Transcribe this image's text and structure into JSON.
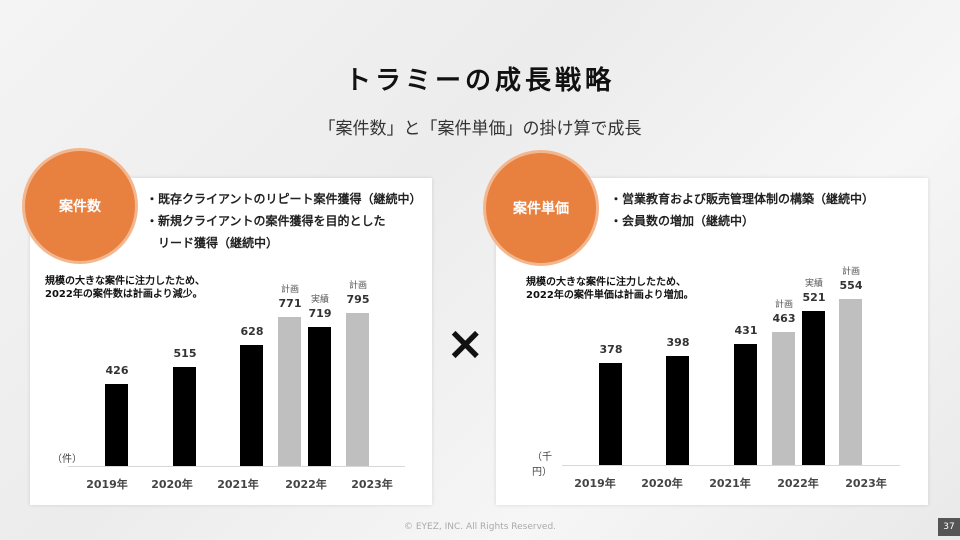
{
  "title": "トラミーの成長戦略",
  "subtitle": "「案件数」と「案件単価」の掛け算で成長",
  "operator": "×",
  "left": {
    "badge": "案件数",
    "bullets": [
      "・既存クライアントのリピート案件獲得（継続中）",
      "・新規クライアントの案件獲得を目的とした",
      "　リード獲得（継続中）"
    ],
    "note": [
      "規模の大きな案件に注力したため、",
      "2022年の案件数は計画より減少。"
    ]
  },
  "right": {
    "badge": "案件単価",
    "bullets": [
      "・営業教育および販売管理体制の構築（継続中）",
      "・会員数の増加（継続中）"
    ],
    "note": [
      "規模の大きな案件に注力したため、",
      "2022年の案件単価は計画より増加。"
    ]
  },
  "chart_data": [
    {
      "type": "bar",
      "title": "案件数",
      "ylabel": "（件）",
      "ylim": [
        0,
        820
      ],
      "categories": [
        "2019年",
        "2020年",
        "2021年",
        "2022年",
        "2023年"
      ],
      "bars": [
        {
          "category": "2019年",
          "value": 426,
          "kind": "actual",
          "label": ""
        },
        {
          "category": "2020年",
          "value": 515,
          "kind": "actual",
          "label": ""
        },
        {
          "category": "2021年",
          "value": 628,
          "kind": "actual",
          "label": ""
        },
        {
          "category": "2022年",
          "value": 771,
          "kind": "plan",
          "label": "計画"
        },
        {
          "category": "2022年",
          "value": 719,
          "kind": "actual",
          "label": "実績"
        },
        {
          "category": "2023年",
          "value": 795,
          "kind": "plan",
          "label": "計画"
        }
      ]
    },
    {
      "type": "bar",
      "title": "案件単価",
      "ylabel": "（千円）",
      "ylim": [
        98,
        580
      ],
      "categories": [
        "2019年",
        "2020年",
        "2021年",
        "2022年",
        "2023年"
      ],
      "bars": [
        {
          "category": "2019年",
          "value": 378,
          "kind": "actual",
          "label": ""
        },
        {
          "category": "2020年",
          "value": 398,
          "kind": "actual",
          "label": ""
        },
        {
          "category": "2021年",
          "value": 431,
          "kind": "actual",
          "label": ""
        },
        {
          "category": "2022年",
          "value": 463,
          "kind": "plan",
          "label": "計画"
        },
        {
          "category": "2022年",
          "value": 521,
          "kind": "actual",
          "label": "実績"
        },
        {
          "category": "2023年",
          "value": 554,
          "kind": "plan",
          "label": "計画"
        }
      ]
    }
  ],
  "colors": {
    "accent": "#e8803f",
    "actual": "#000000",
    "plan": "#bfbfbf"
  },
  "footer": "© EYEZ, INC. All Rights Reserved.",
  "page_number": "37"
}
